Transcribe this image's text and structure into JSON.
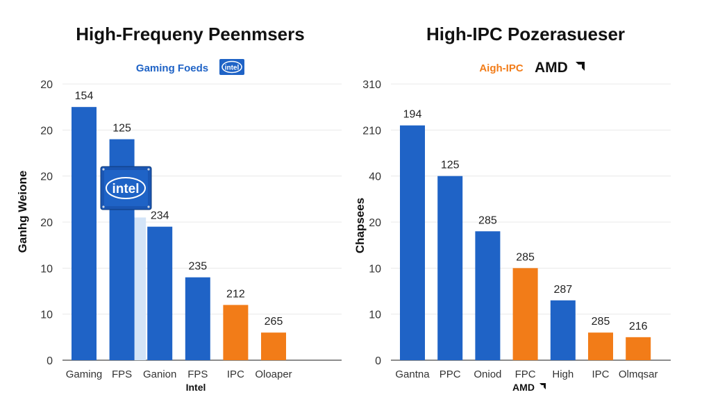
{
  "colors": {
    "blue": "#1f63c6",
    "orange": "#f27c18",
    "light_blue": "#d3e4f7",
    "intel_blue": "#1f63c6",
    "amd_orange": "#f27c18"
  },
  "chart_data": [
    {
      "type": "bar",
      "title": "High-Frequeny Peenmsers",
      "subtitle": "Gaming Foeds",
      "logo_text": "intel",
      "ylabel": "Ganhg Weione",
      "xlabel": "Intel",
      "yticks": [
        "0",
        "10",
        "10",
        "20",
        "20",
        "20",
        "20"
      ],
      "ylim": [
        0,
        6
      ],
      "grid": true,
      "categories": [
        "Gaming",
        "FPS",
        "Ganion",
        "FPS",
        "IPC",
        "Oloaper"
      ],
      "values": [
        5.5,
        4.8,
        2.9,
        1.8,
        1.2,
        0.6
      ],
      "value_labels": [
        "154",
        "125",
        "234",
        "235",
        "212",
        "265"
      ],
      "bar_colors": [
        "blue",
        "blue",
        "blue",
        "blue",
        "orange",
        "orange"
      ]
    },
    {
      "type": "bar",
      "title": "High-IPC Pozerasueser",
      "subtitle": "Aigh-IPC",
      "logo_text": "AMD",
      "ylabel": "Chapsees",
      "xlabel": "AMD",
      "yticks": [
        "0",
        "10",
        "10",
        "20",
        "40",
        "210",
        "310"
      ],
      "ylim": [
        0,
        6
      ],
      "grid": true,
      "categories": [
        "Gantna",
        "PPC",
        "Oniod",
        "FPC",
        "High",
        "IPC",
        "Olmqsar"
      ],
      "values": [
        5.1,
        4.0,
        2.8,
        2.0,
        1.3,
        0.6,
        0.5
      ],
      "value_labels": [
        "194",
        "125",
        "285",
        "285",
        "287",
        "285",
        "216"
      ],
      "bar_colors": [
        "blue",
        "blue",
        "blue",
        "orange",
        "blue",
        "orange",
        "orange"
      ]
    }
  ]
}
